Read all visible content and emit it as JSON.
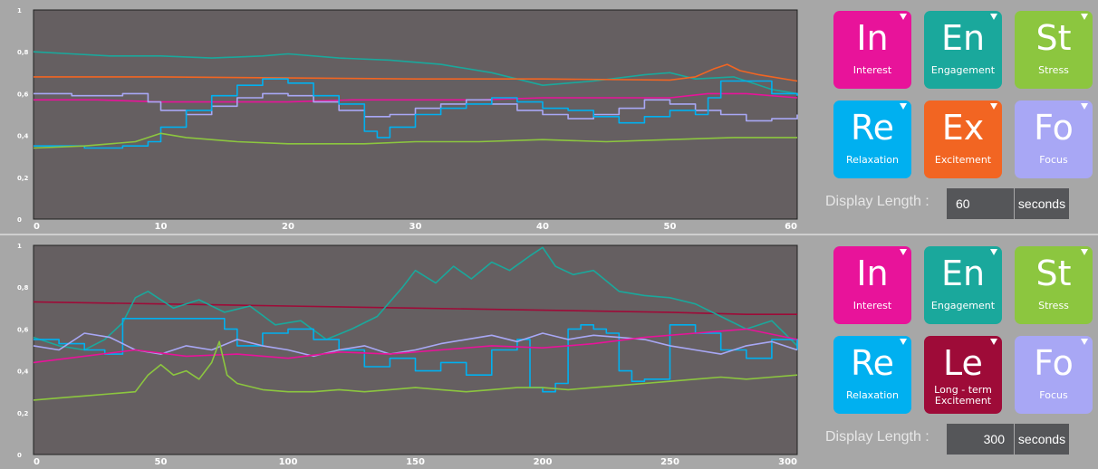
{
  "colors": {
    "interest": "#e8139a",
    "engagement": "#1aa89c",
    "stress": "#8cc63f",
    "relaxation": "#00b0f0",
    "excitement": "#f26522",
    "longterm": "#9e0b38",
    "focus": "#a8a7f5",
    "plot_bg": "#655f61"
  },
  "top": {
    "tiles": [
      {
        "sym": "In",
        "label": "Interest",
        "color": "#e8139a"
      },
      {
        "sym": "En",
        "label": "Engagement",
        "color": "#1aa89c"
      },
      {
        "sym": "St",
        "label": "Stress",
        "color": "#8cc63f"
      },
      {
        "sym": "Re",
        "label": "Relaxation",
        "color": "#00b0f0"
      },
      {
        "sym": "Ex",
        "label": "Excitement",
        "color": "#f26522"
      },
      {
        "sym": "Fo",
        "label": "Focus",
        "color": "#a8a7f5"
      }
    ],
    "display_length_label": "Display Length :",
    "display_length_value": "60",
    "unit": "seconds"
  },
  "bottom": {
    "tiles": [
      {
        "sym": "In",
        "label": "Interest",
        "color": "#e8139a"
      },
      {
        "sym": "En",
        "label": "Engagement",
        "color": "#1aa89c"
      },
      {
        "sym": "St",
        "label": "Stress",
        "color": "#8cc63f"
      },
      {
        "sym": "Re",
        "label": "Relaxation",
        "color": "#00b0f0"
      },
      {
        "sym": "Le",
        "label": "Long - term Excitement",
        "color": "#9e0b38"
      },
      {
        "sym": "Fo",
        "label": "Focus",
        "color": "#a8a7f5"
      }
    ],
    "display_length_label": "Display Length :",
    "display_length_value": "300",
    "unit": "seconds"
  },
  "chart_data": [
    {
      "type": "line",
      "title": "",
      "xlim": [
        0,
        60
      ],
      "ylim": [
        0,
        1
      ],
      "xticks": [
        0,
        10,
        20,
        30,
        40,
        50,
        60
      ],
      "yticks": [
        "0",
        "0,2",
        "0,4",
        "0,6",
        "0,8",
        "1"
      ],
      "grid": false,
      "series": [
        {
          "key": "engagement",
          "color": "#1aa89c",
          "step": false,
          "x": [
            0,
            3,
            6,
            10,
            14,
            18,
            20,
            24,
            28,
            32,
            36,
            40,
            44,
            48,
            50,
            52,
            55,
            58,
            60
          ],
          "y": [
            0.8,
            0.79,
            0.78,
            0.78,
            0.77,
            0.78,
            0.79,
            0.77,
            0.76,
            0.74,
            0.7,
            0.64,
            0.66,
            0.69,
            0.7,
            0.67,
            0.68,
            0.62,
            0.6
          ]
        },
        {
          "key": "excitement",
          "color": "#f26522",
          "step": false,
          "x": [
            0,
            10,
            20,
            30,
            40,
            50,
            52,
            53.5,
            54.5,
            55.5,
            57,
            60
          ],
          "y": [
            0.68,
            0.68,
            0.675,
            0.67,
            0.67,
            0.665,
            0.68,
            0.72,
            0.74,
            0.71,
            0.69,
            0.66
          ]
        },
        {
          "key": "interest",
          "color": "#e8139a",
          "step": false,
          "x": [
            0,
            5,
            10,
            15,
            20,
            25,
            30,
            35,
            40,
            45,
            50,
            53,
            56,
            60
          ],
          "y": [
            0.57,
            0.57,
            0.56,
            0.56,
            0.56,
            0.57,
            0.57,
            0.57,
            0.58,
            0.58,
            0.58,
            0.6,
            0.6,
            0.58
          ]
        },
        {
          "key": "focus",
          "color": "#a8a7f5",
          "step": true,
          "x": [
            0,
            3,
            7,
            9,
            10,
            12,
            14,
            16,
            18,
            20,
            22,
            24,
            26,
            28,
            30,
            32,
            34,
            36,
            38,
            40,
            42,
            44,
            46,
            48,
            50,
            52,
            54,
            56,
            58,
            60
          ],
          "y": [
            0.6,
            0.59,
            0.6,
            0.56,
            0.52,
            0.5,
            0.54,
            0.58,
            0.6,
            0.59,
            0.56,
            0.52,
            0.49,
            0.5,
            0.53,
            0.55,
            0.57,
            0.55,
            0.52,
            0.5,
            0.48,
            0.5,
            0.53,
            0.57,
            0.55,
            0.52,
            0.5,
            0.47,
            0.48,
            0.5
          ]
        },
        {
          "key": "relaxation",
          "color": "#00b0f0",
          "step": true,
          "x": [
            0,
            4,
            7,
            9,
            10,
            12,
            14,
            16,
            18,
            20,
            22,
            24,
            26,
            27,
            28,
            30,
            32,
            34,
            36,
            38,
            40,
            42,
            44,
            46,
            48,
            50,
            52,
            53,
            54,
            56,
            58,
            60
          ],
          "y": [
            0.35,
            0.34,
            0.35,
            0.37,
            0.44,
            0.52,
            0.59,
            0.64,
            0.67,
            0.65,
            0.59,
            0.55,
            0.42,
            0.39,
            0.44,
            0.5,
            0.53,
            0.55,
            0.58,
            0.56,
            0.53,
            0.52,
            0.49,
            0.46,
            0.49,
            0.52,
            0.5,
            0.58,
            0.66,
            0.66,
            0.6,
            0.59
          ]
        },
        {
          "key": "stress",
          "color": "#8cc63f",
          "step": false,
          "x": [
            0,
            4,
            8,
            10,
            12,
            16,
            20,
            26,
            30,
            35,
            40,
            45,
            50,
            55,
            60
          ],
          "y": [
            0.34,
            0.35,
            0.37,
            0.41,
            0.39,
            0.37,
            0.36,
            0.36,
            0.37,
            0.37,
            0.38,
            0.37,
            0.38,
            0.39,
            0.39
          ]
        }
      ]
    },
    {
      "type": "line",
      "title": "",
      "xlim": [
        0,
        300
      ],
      "ylim": [
        0,
        1
      ],
      "xticks": [
        0,
        50,
        100,
        150,
        200,
        250,
        300
      ],
      "yticks": [
        "0",
        "0,2",
        "0,4",
        "0,6",
        "0,8",
        "1"
      ],
      "grid": false,
      "series": [
        {
          "key": "longterm",
          "color": "#9e0b38",
          "step": false,
          "x": [
            0,
            50,
            100,
            150,
            200,
            250,
            280,
            300
          ],
          "y": [
            0.73,
            0.72,
            0.71,
            0.7,
            0.69,
            0.68,
            0.67,
            0.67
          ]
        },
        {
          "key": "engagement",
          "color": "#1aa89c",
          "step": false,
          "x": [
            0,
            10,
            20,
            28,
            35,
            40,
            45,
            55,
            65,
            75,
            85,
            95,
            105,
            115,
            125,
            135,
            145,
            150,
            158,
            165,
            172,
            180,
            187,
            195,
            200,
            205,
            212,
            220,
            230,
            240,
            250,
            260,
            270,
            280,
            290,
            300
          ],
          "y": [
            0.56,
            0.52,
            0.5,
            0.55,
            0.63,
            0.75,
            0.78,
            0.7,
            0.74,
            0.68,
            0.71,
            0.62,
            0.64,
            0.55,
            0.6,
            0.66,
            0.8,
            0.88,
            0.82,
            0.9,
            0.84,
            0.92,
            0.88,
            0.95,
            0.99,
            0.9,
            0.86,
            0.88,
            0.78,
            0.76,
            0.75,
            0.72,
            0.66,
            0.6,
            0.64,
            0.52
          ]
        },
        {
          "key": "relaxation",
          "color": "#00b0f0",
          "step": true,
          "x": [
            0,
            10,
            20,
            28,
            35,
            55,
            75,
            80,
            90,
            100,
            110,
            120,
            130,
            140,
            150,
            160,
            170,
            180,
            190,
            195,
            200,
            205,
            210,
            215,
            220,
            225,
            230,
            235,
            240,
            250,
            260,
            270,
            280,
            290,
            300
          ],
          "y": [
            0.55,
            0.53,
            0.5,
            0.48,
            0.65,
            0.65,
            0.6,
            0.52,
            0.58,
            0.6,
            0.55,
            0.5,
            0.42,
            0.46,
            0.4,
            0.44,
            0.38,
            0.5,
            0.55,
            0.32,
            0.3,
            0.34,
            0.6,
            0.62,
            0.6,
            0.58,
            0.4,
            0.35,
            0.36,
            0.62,
            0.58,
            0.5,
            0.46,
            0.55,
            0.5
          ]
        },
        {
          "key": "focus",
          "color": "#a8a7f5",
          "step": false,
          "x": [
            0,
            10,
            20,
            30,
            40,
            50,
            60,
            70,
            80,
            90,
            100,
            110,
            120,
            130,
            140,
            150,
            160,
            170,
            180,
            190,
            200,
            210,
            220,
            230,
            240,
            250,
            260,
            270,
            280,
            290,
            300
          ],
          "y": [
            0.52,
            0.5,
            0.58,
            0.56,
            0.5,
            0.48,
            0.52,
            0.5,
            0.55,
            0.52,
            0.5,
            0.47,
            0.5,
            0.52,
            0.48,
            0.5,
            0.53,
            0.55,
            0.57,
            0.54,
            0.58,
            0.55,
            0.57,
            0.56,
            0.55,
            0.52,
            0.5,
            0.48,
            0.52,
            0.54,
            0.5
          ]
        },
        {
          "key": "interest",
          "color": "#e8139a",
          "step": false,
          "x": [
            0,
            20,
            40,
            60,
            80,
            100,
            120,
            140,
            160,
            180,
            200,
            220,
            240,
            260,
            280,
            300
          ],
          "y": [
            0.44,
            0.47,
            0.5,
            0.47,
            0.48,
            0.46,
            0.49,
            0.48,
            0.5,
            0.52,
            0.51,
            0.53,
            0.56,
            0.58,
            0.6,
            0.55
          ]
        },
        {
          "key": "stress",
          "color": "#8cc63f",
          "step": false,
          "x": [
            0,
            10,
            20,
            30,
            40,
            45,
            50,
            55,
            60,
            65,
            70,
            73,
            76,
            80,
            90,
            100,
            110,
            120,
            130,
            140,
            150,
            160,
            170,
            180,
            190,
            200,
            210,
            220,
            230,
            240,
            250,
            260,
            270,
            280,
            290,
            300
          ],
          "y": [
            0.26,
            0.27,
            0.28,
            0.29,
            0.3,
            0.38,
            0.43,
            0.38,
            0.4,
            0.36,
            0.44,
            0.54,
            0.38,
            0.34,
            0.31,
            0.3,
            0.3,
            0.31,
            0.3,
            0.31,
            0.32,
            0.31,
            0.3,
            0.31,
            0.32,
            0.32,
            0.31,
            0.32,
            0.33,
            0.34,
            0.35,
            0.36,
            0.37,
            0.36,
            0.37,
            0.38
          ]
        }
      ]
    }
  ]
}
